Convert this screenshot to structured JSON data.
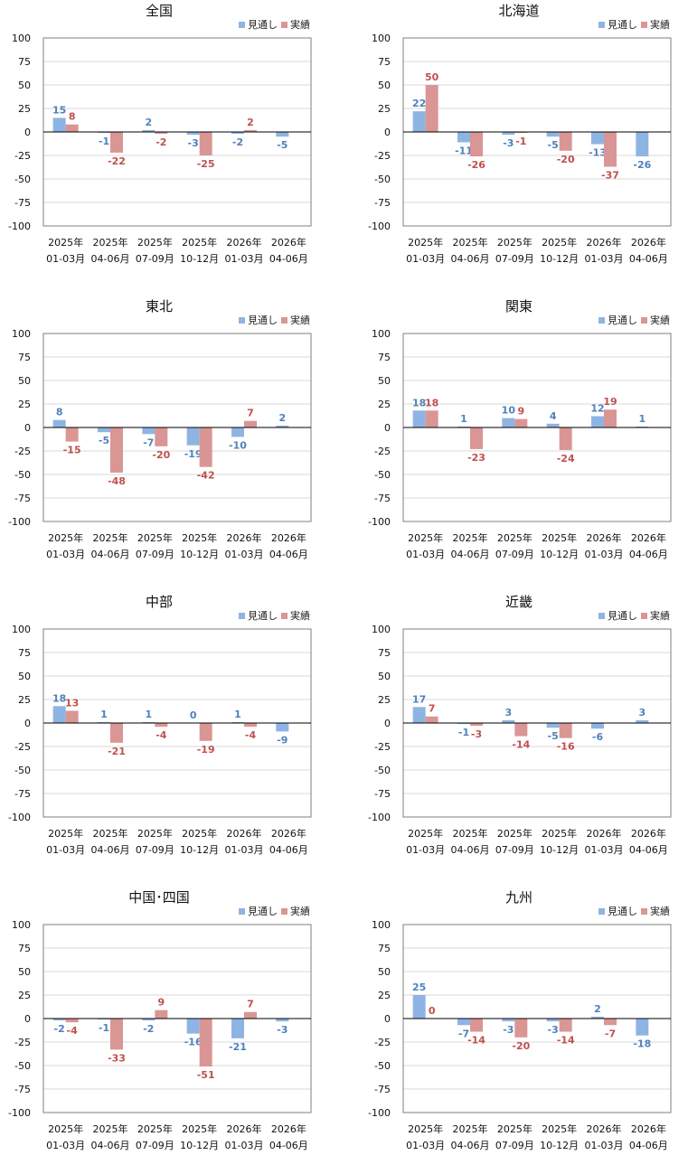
{
  "legend": {
    "forecast_label": "見通し",
    "actual_label": "実績"
  },
  "colors": {
    "forecast_bar": "#8EB4E3",
    "actual_bar": "#D99694",
    "forecast_label": "#4F81BD",
    "actual_label": "#C0504D",
    "plot_border": "#7F7F7F",
    "grid": "#D9D9D9",
    "zero_line": "#000000"
  },
  "chart_data": [
    {
      "type": "bar",
      "title": "全国",
      "categories": [
        [
          "2025年",
          "01-03月"
        ],
        [
          "2025年",
          "04-06月"
        ],
        [
          "2025年",
          "07-09月"
        ],
        [
          "2025年",
          "10-12月"
        ],
        [
          "2026年",
          "01-03月"
        ],
        [
          "2026年",
          "04-06月"
        ]
      ],
      "ylim": [
        -100,
        100
      ],
      "yticks": [
        100,
        75,
        50,
        25,
        0,
        -25,
        -50,
        -75,
        -100
      ],
      "grid": true,
      "legend_position": "top-right",
      "series": [
        {
          "name": "見通し",
          "values": [
            15,
            -1,
            2,
            -3,
            -2,
            -5
          ]
        },
        {
          "name": "実績",
          "values": [
            8,
            -22,
            -2,
            -25,
            2,
            null
          ]
        }
      ]
    },
    {
      "type": "bar",
      "title": "北海道",
      "categories": [
        [
          "2025年",
          "01-03月"
        ],
        [
          "2025年",
          "04-06月"
        ],
        [
          "2025年",
          "07-09月"
        ],
        [
          "2025年",
          "10-12月"
        ],
        [
          "2026年",
          "01-03月"
        ],
        [
          "2026年",
          "04-06月"
        ]
      ],
      "ylim": [
        -100,
        100
      ],
      "yticks": [
        100,
        75,
        50,
        25,
        0,
        -25,
        -50,
        -75,
        -100
      ],
      "grid": true,
      "legend_position": "top-right",
      "series": [
        {
          "name": "見通し",
          "values": [
            22,
            -11,
            -3,
            -5,
            -13,
            -26
          ]
        },
        {
          "name": "実績",
          "values": [
            50,
            -26,
            -1,
            -20,
            -37,
            null
          ]
        }
      ]
    },
    {
      "type": "bar",
      "title": "東北",
      "categories": [
        [
          "2025年",
          "01-03月"
        ],
        [
          "2025年",
          "04-06月"
        ],
        [
          "2025年",
          "07-09月"
        ],
        [
          "2025年",
          "10-12月"
        ],
        [
          "2026年",
          "01-03月"
        ],
        [
          "2026年",
          "04-06月"
        ]
      ],
      "ylim": [
        -100,
        100
      ],
      "yticks": [
        100,
        75,
        50,
        25,
        0,
        -25,
        -50,
        -75,
        -100
      ],
      "grid": true,
      "legend_position": "top-right",
      "series": [
        {
          "name": "見通し",
          "values": [
            8,
            -5,
            -7,
            -19,
            -10,
            2
          ]
        },
        {
          "name": "実績",
          "values": [
            -15,
            -48,
            -20,
            -42,
            7,
            null
          ]
        }
      ]
    },
    {
      "type": "bar",
      "title": "関東",
      "categories": [
        [
          "2025年",
          "01-03月"
        ],
        [
          "2025年",
          "04-06月"
        ],
        [
          "2025年",
          "07-09月"
        ],
        [
          "2025年",
          "10-12月"
        ],
        [
          "2026年",
          "01-03月"
        ],
        [
          "2026年",
          "04-06月"
        ]
      ],
      "ylim": [
        -100,
        100
      ],
      "yticks": [
        100,
        75,
        50,
        25,
        0,
        -25,
        -50,
        -75,
        -100
      ],
      "grid": true,
      "legend_position": "top-right",
      "series": [
        {
          "name": "見通し",
          "values": [
            18,
            1,
            10,
            4,
            12,
            1
          ]
        },
        {
          "name": "実績",
          "values": [
            18,
            -23,
            9,
            -24,
            19,
            null
          ]
        }
      ]
    },
    {
      "type": "bar",
      "title": "中部",
      "categories": [
        [
          "2025年",
          "01-03月"
        ],
        [
          "2025年",
          "04-06月"
        ],
        [
          "2025年",
          "07-09月"
        ],
        [
          "2025年",
          "10-12月"
        ],
        [
          "2026年",
          "01-03月"
        ],
        [
          "2026年",
          "04-06月"
        ]
      ],
      "ylim": [
        -100,
        100
      ],
      "yticks": [
        100,
        75,
        50,
        25,
        0,
        -25,
        -50,
        -75,
        -100
      ],
      "grid": true,
      "legend_position": "top-right",
      "series": [
        {
          "name": "見通し",
          "values": [
            18,
            1,
            1,
            0,
            1,
            -9
          ]
        },
        {
          "name": "実績",
          "values": [
            13,
            -21,
            -4,
            -19,
            -4,
            null
          ]
        }
      ]
    },
    {
      "type": "bar",
      "title": "近畿",
      "categories": [
        [
          "2025年",
          "01-03月"
        ],
        [
          "2025年",
          "04-06月"
        ],
        [
          "2025年",
          "07-09月"
        ],
        [
          "2025年",
          "10-12月"
        ],
        [
          "2026年",
          "01-03月"
        ],
        [
          "2026年",
          "04-06月"
        ]
      ],
      "ylim": [
        -100,
        100
      ],
      "yticks": [
        100,
        75,
        50,
        25,
        0,
        -25,
        -50,
        -75,
        -100
      ],
      "grid": true,
      "legend_position": "top-right",
      "series": [
        {
          "name": "見通し",
          "values": [
            17,
            -1,
            3,
            -5,
            -6,
            3
          ]
        },
        {
          "name": "実績",
          "values": [
            7,
            -3,
            -14,
            -16,
            null,
            null
          ]
        }
      ]
    },
    {
      "type": "bar",
      "title": "中国･四国",
      "categories": [
        [
          "2025年",
          "01-03月"
        ],
        [
          "2025年",
          "04-06月"
        ],
        [
          "2025年",
          "07-09月"
        ],
        [
          "2025年",
          "10-12月"
        ],
        [
          "2026年",
          "01-03月"
        ],
        [
          "2026年",
          "04-06月"
        ]
      ],
      "ylim": [
        -100,
        100
      ],
      "yticks": [
        100,
        75,
        50,
        25,
        0,
        -25,
        -50,
        -75,
        -100
      ],
      "grid": true,
      "legend_position": "top-right",
      "series": [
        {
          "name": "見通し",
          "values": [
            -2,
            -1,
            -2,
            -16,
            -21,
            -3
          ]
        },
        {
          "name": "実績",
          "values": [
            -4,
            -33,
            9,
            -51,
            7,
            null
          ]
        }
      ]
    },
    {
      "type": "bar",
      "title": "九州",
      "categories": [
        [
          "2025年",
          "01-03月"
        ],
        [
          "2025年",
          "04-06月"
        ],
        [
          "2025年",
          "07-09月"
        ],
        [
          "2025年",
          "10-12月"
        ],
        [
          "2026年",
          "01-03月"
        ],
        [
          "2026年",
          "04-06月"
        ]
      ],
      "ylim": [
        -100,
        100
      ],
      "yticks": [
        100,
        75,
        50,
        25,
        0,
        -25,
        -50,
        -75,
        -100
      ],
      "grid": true,
      "legend_position": "top-right",
      "series": [
        {
          "name": "見通し",
          "values": [
            25,
            -7,
            -3,
            -3,
            2,
            -18
          ]
        },
        {
          "name": "実績",
          "values": [
            0,
            -14,
            -20,
            -14,
            -7,
            null
          ]
        }
      ]
    }
  ]
}
